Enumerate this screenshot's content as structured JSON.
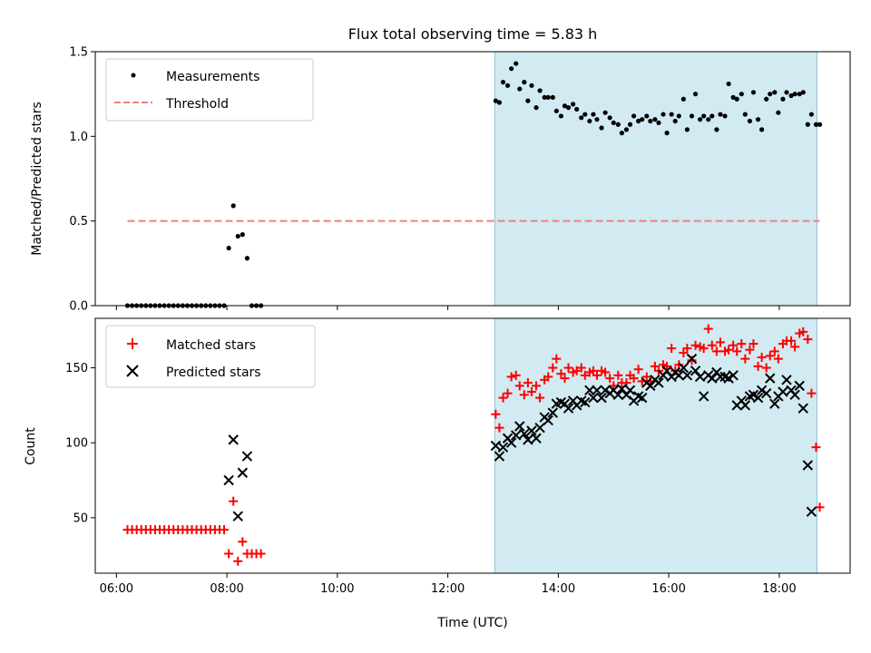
{
  "chart_data": [
    {
      "type": "scatter",
      "title": "Flux total observing time = 5.83 h",
      "ylabel": "Matched/Predicted stars",
      "xlabel": "",
      "xlim": [
        "05:37",
        "19:17"
      ],
      "ylim": [
        0,
        1.5
      ],
      "yticks": [
        "0.0",
        "0.5",
        "1.0",
        "1.5"
      ],
      "xticks": [
        "06:00",
        "08:00",
        "10:00",
        "12:00",
        "14:00",
        "16:00",
        "18:00"
      ],
      "show_x_tick_labels": false,
      "highlight_span": {
        "start": "12:51",
        "end": "18:41",
        "color": "#add8e6"
      },
      "legend": {
        "placement": "upper-left",
        "entries": [
          "Measurements",
          "Threshold"
        ]
      },
      "series": [
        {
          "name": "Measurements",
          "style": "dot",
          "color": "#000000",
          "x": [
            "06:12",
            "06:17",
            "06:22",
            "06:27",
            "06:32",
            "06:37",
            "06:42",
            "06:47",
            "06:52",
            "06:57",
            "07:02",
            "07:07",
            "07:12",
            "07:17",
            "07:22",
            "07:27",
            "07:32",
            "07:37",
            "07:42",
            "07:47",
            "07:52",
            "07:57",
            "08:02",
            "08:07",
            "08:12",
            "08:17",
            "08:22",
            "08:27",
            "08:32",
            "08:37",
            "12:52",
            "12:56",
            "13:00",
            "13:05",
            "13:09",
            "13:14",
            "13:18",
            "13:23",
            "13:27",
            "13:31",
            "13:36",
            "13:40",
            "13:45",
            "13:49",
            "13:54",
            "13:58",
            "14:03",
            "14:07",
            "14:11",
            "14:16",
            "14:20",
            "14:25",
            "14:29",
            "14:34",
            "14:38",
            "14:42",
            "14:47",
            "14:51",
            "14:56",
            "15:00",
            "15:05",
            "15:09",
            "15:14",
            "15:18",
            "15:22",
            "15:27",
            "15:31",
            "15:36",
            "15:40",
            "15:45",
            "15:49",
            "15:54",
            "15:58",
            "16:03",
            "16:07",
            "16:11",
            "16:16",
            "16:20",
            "16:25",
            "16:29",
            "16:34",
            "16:38",
            "16:43",
            "16:47",
            "16:52",
            "16:56",
            "17:01",
            "17:05",
            "17:10",
            "17:14",
            "17:19",
            "17:23",
            "17:28",
            "17:32",
            "17:37",
            "17:41",
            "17:46",
            "17:50",
            "17:55",
            "17:59",
            "18:04",
            "18:08",
            "18:13",
            "18:17",
            "18:22",
            "18:26",
            "18:31",
            "18:35",
            "18:40",
            "18:44"
          ],
          "y": [
            0,
            0,
            0,
            0,
            0,
            0,
            0,
            0,
            0,
            0,
            0,
            0,
            0,
            0,
            0,
            0,
            0,
            0,
            0,
            0,
            0,
            0,
            0.34,
            0.59,
            0.41,
            0.42,
            0.28,
            0,
            0,
            0,
            1.21,
            1.2,
            1.32,
            1.3,
            1.4,
            1.43,
            1.28,
            1.32,
            1.21,
            1.3,
            1.17,
            1.27,
            1.23,
            1.23,
            1.23,
            1.15,
            1.12,
            1.18,
            1.17,
            1.19,
            1.16,
            1.11,
            1.13,
            1.09,
            1.13,
            1.1,
            1.05,
            1.14,
            1.11,
            1.08,
            1.07,
            1.02,
            1.04,
            1.07,
            1.12,
            1.09,
            1.1,
            1.12,
            1.09,
            1.1,
            1.08,
            1.13,
            1.02,
            1.13,
            1.09,
            1.12,
            1.22,
            1.04,
            1.12,
            1.25,
            1.1,
            1.12,
            1.1,
            1.12,
            1.04,
            1.13,
            1.12,
            1.31,
            1.23,
            1.22,
            1.25,
            1.13,
            1.09,
            1.26,
            1.1,
            1.04,
            1.22,
            1.25,
            1.26,
            1.14,
            1.22,
            1.26,
            1.24,
            1.25,
            1.25,
            1.26,
            1.07,
            1.13,
            1.07,
            1.07
          ]
        },
        {
          "name": "Threshold",
          "style": "dashed-line",
          "color": "#f08080",
          "x": [
            "06:12",
            "18:44"
          ],
          "y": [
            0.5,
            0.5
          ]
        }
      ]
    },
    {
      "type": "scatter",
      "title": "",
      "ylabel": "Count",
      "xlabel": "Time (UTC)",
      "xlim": [
        "05:37",
        "19:17"
      ],
      "ylim": [
        13,
        183
      ],
      "yticks": [
        "50",
        "100",
        "150"
      ],
      "xticks": [
        "06:00",
        "08:00",
        "10:00",
        "12:00",
        "14:00",
        "16:00",
        "18:00"
      ],
      "show_x_tick_labels": true,
      "highlight_span": {
        "start": "12:51",
        "end": "18:41",
        "color": "#add8e6"
      },
      "legend": {
        "placement": "upper-left",
        "entries": [
          "Matched stars",
          "Predicted stars"
        ]
      },
      "series": [
        {
          "name": "Matched stars",
          "style": "plus",
          "color": "#ff0000",
          "x": [
            "06:12",
            "06:17",
            "06:22",
            "06:27",
            "06:32",
            "06:37",
            "06:42",
            "06:47",
            "06:52",
            "06:57",
            "07:02",
            "07:07",
            "07:12",
            "07:17",
            "07:22",
            "07:27",
            "07:32",
            "07:37",
            "07:42",
            "07:47",
            "07:52",
            "07:57",
            "08:02",
            "08:07",
            "08:12",
            "08:17",
            "08:22",
            "08:27",
            "08:32",
            "08:37",
            "12:52",
            "12:56",
            "13:00",
            "13:05",
            "13:09",
            "13:14",
            "13:18",
            "13:23",
            "13:27",
            "13:31",
            "13:36",
            "13:40",
            "13:45",
            "13:49",
            "13:54",
            "13:58",
            "14:03",
            "14:07",
            "14:11",
            "14:16",
            "14:20",
            "14:25",
            "14:29",
            "14:34",
            "14:38",
            "14:42",
            "14:47",
            "14:51",
            "14:56",
            "15:00",
            "15:05",
            "15:09",
            "15:14",
            "15:18",
            "15:22",
            "15:27",
            "15:31",
            "15:36",
            "15:40",
            "15:45",
            "15:49",
            "15:54",
            "15:58",
            "16:03",
            "16:07",
            "16:11",
            "16:16",
            "16:20",
            "16:25",
            "16:29",
            "16:34",
            "16:38",
            "16:43",
            "16:47",
            "16:52",
            "16:56",
            "17:01",
            "17:05",
            "17:10",
            "17:14",
            "17:19",
            "17:23",
            "17:28",
            "17:32",
            "17:37",
            "17:41",
            "17:46",
            "17:50",
            "17:55",
            "17:59",
            "18:04",
            "18:08",
            "18:13",
            "18:17",
            "18:22",
            "18:26",
            "18:31",
            "18:35",
            "18:40",
            "18:44"
          ],
          "y": [
            42,
            42,
            42,
            42,
            42,
            42,
            42,
            42,
            42,
            42,
            42,
            42,
            42,
            42,
            42,
            42,
            42,
            42,
            42,
            42,
            42,
            42,
            26,
            61,
            21,
            34,
            26,
            26,
            26,
            26,
            119,
            110,
            130,
            133,
            144,
            145,
            138,
            132,
            140,
            134,
            138,
            130,
            142,
            144,
            150,
            156,
            146,
            143,
            150,
            147,
            148,
            150,
            145,
            147,
            148,
            145,
            148,
            147,
            143,
            138,
            145,
            140,
            140,
            145,
            143,
            149,
            141,
            144,
            141,
            151,
            148,
            152,
            151,
            163,
            148,
            152,
            160,
            163,
            155,
            165,
            164,
            163,
            176,
            165,
            161,
            167,
            161,
            162,
            165,
            161,
            166,
            156,
            162,
            166,
            151,
            157,
            150,
            158,
            161,
            156,
            166,
            168,
            168,
            164,
            173,
            174,
            169,
            133,
            97,
            57
          ]
        },
        {
          "name": "Predicted stars",
          "style": "x",
          "color": "#000000",
          "x": [
            "06:12",
            "06:17",
            "06:22",
            "06:27",
            "06:32",
            "06:37",
            "06:42",
            "06:47",
            "06:52",
            "06:57",
            "07:02",
            "07:07",
            "07:12",
            "07:17",
            "07:22",
            "07:27",
            "07:32",
            "07:37",
            "07:42",
            "07:47",
            "07:52",
            "07:57",
            "08:02",
            "08:07",
            "08:12",
            "08:17",
            "08:22",
            "08:27",
            "08:32",
            "08:37",
            "12:52",
            "12:56",
            "13:00",
            "13:05",
            "13:09",
            "13:14",
            "13:18",
            "13:23",
            "13:27",
            "13:31",
            "13:36",
            "13:40",
            "13:45",
            "13:49",
            "13:54",
            "13:58",
            "14:03",
            "14:07",
            "14:11",
            "14:16",
            "14:20",
            "14:25",
            "14:29",
            "14:34",
            "14:38",
            "14:42",
            "14:47",
            "14:51",
            "14:56",
            "15:00",
            "15:05",
            "15:09",
            "15:14",
            "15:18",
            "15:22",
            "15:27",
            "15:31",
            "15:36",
            "15:40",
            "15:45",
            "15:49",
            "15:54",
            "15:58",
            "16:03",
            "16:07",
            "16:11",
            "16:16",
            "16:20",
            "16:25",
            "16:29",
            "16:34",
            "16:38",
            "16:43",
            "16:47",
            "16:52",
            "16:56",
            "17:01",
            "17:05",
            "17:10",
            "17:14",
            "17:19",
            "17:23",
            "17:28",
            "17:32",
            "17:37",
            "17:41",
            "17:46",
            "17:50",
            "17:55",
            "17:59",
            "18:04",
            "18:08",
            "18:13",
            "18:17",
            "18:22",
            "18:26",
            "18:31",
            "18:35",
            "18:40",
            "18:44"
          ],
          "y": [
            null,
            null,
            null,
            null,
            null,
            null,
            null,
            null,
            null,
            null,
            null,
            null,
            null,
            null,
            null,
            null,
            null,
            null,
            null,
            null,
            null,
            null,
            75,
            102,
            51,
            80,
            91,
            null,
            null,
            null,
            98,
            91,
            97,
            103,
            100,
            105,
            111,
            106,
            102,
            108,
            103,
            110,
            117,
            115,
            120,
            126,
            127,
            126,
            123,
            128,
            125,
            128,
            127,
            135,
            130,
            135,
            130,
            135,
            133,
            135,
            132,
            136,
            132,
            135,
            128,
            131,
            130,
            140,
            138,
            142,
            140,
            145,
            148,
            144,
            147,
            145,
            150,
            145,
            156,
            148,
            144,
            131,
            145,
            143,
            147,
            144,
            144,
            143,
            145,
            125,
            128,
            125,
            131,
            132,
            130,
            135,
            133,
            143,
            126,
            131,
            134,
            142,
            135,
            132,
            138,
            123,
            85,
            54,
            null,
            null
          ]
        }
      ]
    }
  ]
}
